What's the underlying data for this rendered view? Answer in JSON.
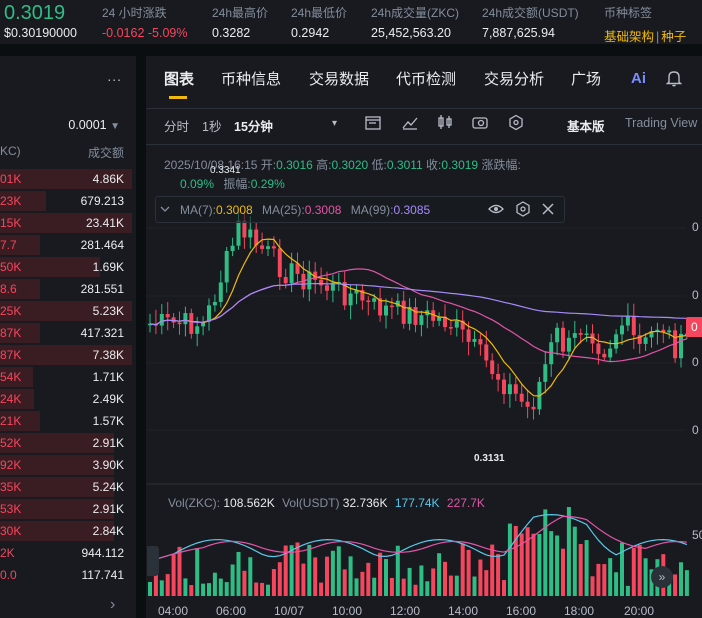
{
  "header": {
    "price": "0.3019",
    "price_usd": "$0.30190000",
    "stats": [
      {
        "label": "24 小时涨跌",
        "value": "-0.0162 -5.09%"
      },
      {
        "label": "24h最高价",
        "value": "0.3282"
      },
      {
        "label": "24h最低价",
        "value": "0.2942"
      },
      {
        "label": "24h成交量(ZKC)",
        "value": "25,452,563.20"
      },
      {
        "label": "24h成交额(USDT)",
        "value": "7,887,625.94"
      }
    ],
    "tag_label": "币种标签",
    "tag_1": "基础架构",
    "tag_sep": "|",
    "tag_2": "种子"
  },
  "orderbook": {
    "more_icon": "...",
    "precision": "0.0001",
    "col_price": "KC)",
    "col_qty": "成交额",
    "rows": [
      {
        "p": "01K",
        "q": "4.86K",
        "w": 1.0
      },
      {
        "p": "23K",
        "q": "679.213",
        "w": 0.35
      },
      {
        "p": "15K",
        "q": "23.41K",
        "w": 1.0
      },
      {
        "p": "7.7",
        "q": "281.464",
        "w": 0.3
      },
      {
        "p": "50K",
        "q": "1.69K",
        "w": 0.76
      },
      {
        "p": "8.6",
        "q": "281.551",
        "w": 0.3
      },
      {
        "p": "25K",
        "q": "5.23K",
        "w": 1.0
      },
      {
        "p": "87K",
        "q": "417.321",
        "w": 0.3
      },
      {
        "p": "87K",
        "q": "7.38K",
        "w": 1.0
      },
      {
        "p": "54K",
        "q": "1.71K",
        "w": 0.25
      },
      {
        "p": "24K",
        "q": "2.49K",
        "w": 0.26
      },
      {
        "p": "21K",
        "q": "1.57K",
        "w": 0.3
      },
      {
        "p": "52K",
        "q": "2.91K",
        "w": 0.86
      },
      {
        "p": "92K",
        "q": "3.90K",
        "w": 0.86
      },
      {
        "p": "35K",
        "q": "5.24K",
        "w": 0.86
      },
      {
        "p": "53K",
        "q": "2.91K",
        "w": 0.86
      },
      {
        "p": "30K",
        "q": "2.84K",
        "w": 0.86
      },
      {
        "p": "2K",
        "q": "944.112",
        "w": 0.0
      },
      {
        "p": "0.0",
        "q": "117.741",
        "w": 0.0
      }
    ],
    "next_icon": "›"
  },
  "tabs": [
    "图表",
    "币种信息",
    "交易数据",
    "代币检测",
    "交易分析",
    "广场"
  ],
  "ai_label": "Ai",
  "timeframes": {
    "items": [
      "分时",
      "1秒",
      "15分钟"
    ],
    "dropdown_icon": "▾",
    "view_basic": "基本版",
    "view_tv": "Trading View"
  },
  "ohlc": {
    "time": "2025/10/08 16:15",
    "open_label": "开:",
    "open": "0.3016",
    "high_label": "高:",
    "high": "0.3020",
    "low_label": "低:",
    "low": "0.3011",
    "close_label": "收:",
    "close": "0.3019",
    "chg_label": "涨跌幅:",
    "chg": "0.09%",
    "amp_label": "振幅:",
    "amp": "0.29%"
  },
  "ma": {
    "ma7_label": "MA(7):",
    "ma7": "0.3008",
    "ma25_label": "MA(25):",
    "ma25": "0.3008",
    "ma99_label": "MA(99):",
    "ma99": "0.3085"
  },
  "vol": {
    "label1": "Vol(ZKC):",
    "v1": "108.562K",
    "label2": "Vol(USDT)",
    "v2": "32.736K",
    "v3": "177.74K",
    "v4": "227.7K"
  },
  "annotations": {
    "high": "0.3341",
    "low": "0.3131"
  },
  "current_price_tag": "0",
  "y_axis_labels": [
    "0",
    "0",
    "0",
    "0"
  ],
  "vol_axis_label": "50",
  "x_axis_labels": [
    "04:00",
    "06:00",
    "10/07",
    "10:00",
    "12:00",
    "14:00",
    "16:00",
    "18:00",
    "20:00"
  ],
  "colors": {
    "up": "#2ebd85",
    "down": "#f6465d",
    "ma7": "#f0b90b",
    "ma25": "#e355a8",
    "ma99": "#a78bfa",
    "accent": "#f0b90b"
  }
}
